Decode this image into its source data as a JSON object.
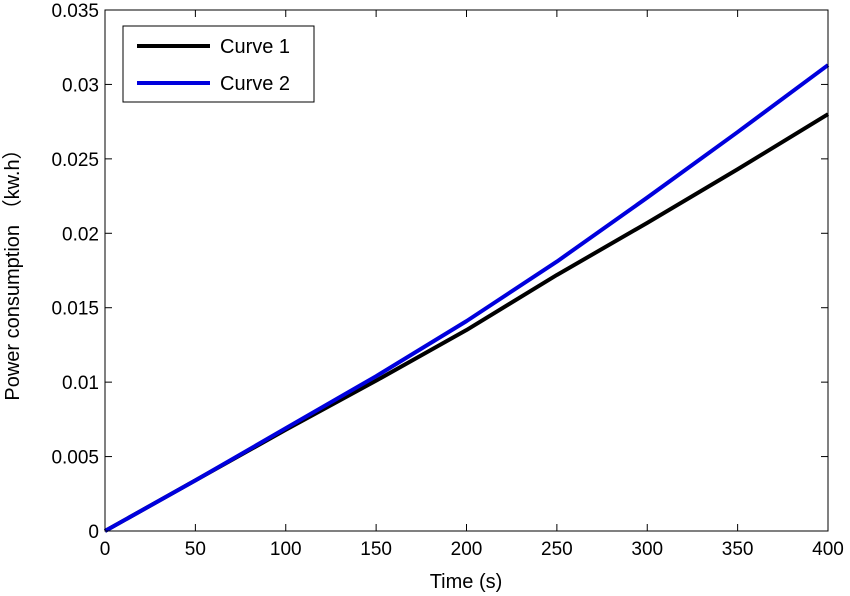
{
  "chart_data": {
    "type": "line",
    "xlabel": "Time (s)",
    "ylabel": "Power consumption （kw.h）",
    "xlim": [
      0,
      400
    ],
    "ylim": [
      0,
      0.035
    ],
    "xticks": [
      0,
      50,
      100,
      150,
      200,
      250,
      300,
      350,
      400
    ],
    "xtick_labels": [
      "0",
      "50",
      "100",
      "150",
      "200",
      "250",
      "300",
      "350",
      "400"
    ],
    "yticks": [
      0,
      0.005,
      0.01,
      0.015,
      0.02,
      0.025,
      0.03,
      0.035
    ],
    "ytick_labels": [
      "0",
      "0.005",
      "0.01",
      "0.015",
      "0.02",
      "0.025",
      "0.03",
      "0.035"
    ],
    "grid": false,
    "legend_position": "top-left",
    "series": [
      {
        "name": "Curve 1",
        "color": "#000000",
        "x": [
          0,
          50,
          100,
          150,
          200,
          250,
          300,
          350,
          400
        ],
        "y": [
          0,
          0.0034,
          0.0068,
          0.0101,
          0.0135,
          0.0172,
          0.0207,
          0.0243,
          0.028
        ]
      },
      {
        "name": "Curve 2",
        "color": "#0000dd",
        "x": [
          0,
          50,
          100,
          150,
          200,
          250,
          300,
          350,
          400
        ],
        "y": [
          0,
          0.0034,
          0.0069,
          0.0104,
          0.0141,
          0.0181,
          0.0224,
          0.0268,
          0.0313
        ]
      }
    ]
  }
}
